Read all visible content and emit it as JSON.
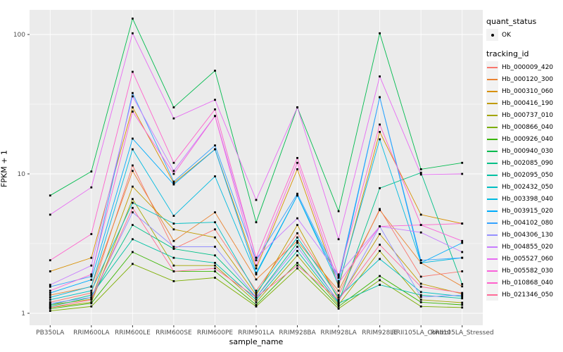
{
  "chart_data": {
    "type": "line",
    "title": "",
    "xlabel": "sample_name",
    "ylabel": "FPKM + 1",
    "y_scale": "log10",
    "y_ticks": [
      1,
      10,
      100
    ],
    "y_minor_ticks": [
      3.162,
      31.62
    ],
    "ylim": [
      0.82,
      150
    ],
    "grid": "on",
    "legend_position": "right",
    "marker": {
      "shape": "square",
      "color": "#000000",
      "meaning": "quant_status OK"
    },
    "categories": [
      "PB350LA",
      "RRIM600LA",
      "RRIM600LE",
      "RRIM600SE",
      "RRIM600PE",
      "RRIM901LA",
      "RRIM928BA",
      "RRIM928LA",
      "RRIM928LE",
      "RRII105LA_Control",
      "RRII105LA_Stressed"
    ],
    "series": [
      {
        "name": "Hb_000009_420",
        "color": "#F8766D",
        "values": [
          1.2,
          1.4,
          11.5,
          2.9,
          4.0,
          1.45,
          3.75,
          1.35,
          5.6,
          1.83,
          2.0
        ]
      },
      {
        "name": "Hb_000120_300",
        "color": "#EA8331",
        "values": [
          1.35,
          1.55,
          10.5,
          3.3,
          5.3,
          1.75,
          3.3,
          1.45,
          5.5,
          2.3,
          1.56
        ]
      },
      {
        "name": "Hb_000310_060",
        "color": "#D89000",
        "values": [
          2.0,
          2.5,
          30,
          8.6,
          15,
          2.1,
          10.8,
          1.55,
          20,
          5.1,
          4.4
        ]
      },
      {
        "name": "Hb_000416_190",
        "color": "#C09B00",
        "values": [
          1.15,
          1.26,
          8.1,
          4.0,
          3.5,
          1.35,
          4.3,
          1.25,
          3.7,
          1.63,
          1.38
        ]
      },
      {
        "name": "Hb_000737_010",
        "color": "#A3A500",
        "values": [
          1.1,
          1.2,
          6.6,
          2.2,
          2.2,
          1.2,
          2.6,
          1.15,
          2.8,
          1.25,
          1.19
        ]
      },
      {
        "name": "Hb_000866_040",
        "color": "#7CAE00",
        "values": [
          1.04,
          1.12,
          2.26,
          1.7,
          1.8,
          1.12,
          2.1,
          1.08,
          1.73,
          1.12,
          1.1
        ]
      },
      {
        "name": "Hb_000926_040",
        "color": "#39B600",
        "values": [
          1.08,
          1.18,
          2.75,
          2.0,
          2.0,
          1.15,
          2.3,
          1.12,
          1.85,
          1.2,
          1.15
        ]
      },
      {
        "name": "Hb_000940_030",
        "color": "#00BB4E",
        "values": [
          7.0,
          10.4,
          130,
          30,
          55,
          4.5,
          30,
          5.4,
          102,
          10.8,
          12
        ]
      },
      {
        "name": "Hb_002085_090",
        "color": "#00C087",
        "values": [
          1.12,
          1.3,
          4.3,
          2.9,
          2.6,
          1.3,
          3.2,
          1.2,
          7.9,
          10.2,
          1.62
        ]
      },
      {
        "name": "Hb_002095_050",
        "color": "#00C1A3",
        "values": [
          1.15,
          1.35,
          3.4,
          2.5,
          2.3,
          1.25,
          2.8,
          1.18,
          1.6,
          1.35,
          1.28
        ]
      },
      {
        "name": "Hb_002432_050",
        "color": "#00BFC4",
        "values": [
          1.25,
          1.45,
          6.2,
          4.4,
          4.5,
          1.4,
          3.5,
          1.3,
          2.45,
          1.42,
          1.32
        ]
      },
      {
        "name": "Hb_003398_040",
        "color": "#00BAE0",
        "values": [
          1.3,
          1.56,
          15,
          5.0,
          9.6,
          1.9,
          7.0,
          1.6,
          17.7,
          2.3,
          2.5
        ]
      },
      {
        "name": "Hb_003915_020",
        "color": "#00ACFC",
        "values": [
          1.4,
          1.74,
          17.9,
          8.4,
          15,
          1.95,
          7.0,
          1.7,
          35.5,
          2.3,
          3.2
        ]
      },
      {
        "name": "Hb_004102_080",
        "color": "#35A2FF",
        "values": [
          1.55,
          1.84,
          38,
          8.8,
          16,
          2.4,
          7.2,
          1.8,
          35.5,
          2.4,
          2.5
        ]
      },
      {
        "name": "Hb_004306_130",
        "color": "#9590FF",
        "values": [
          1.18,
          1.3,
          5.3,
          3.0,
          3.0,
          1.3,
          3.0,
          1.22,
          4.2,
          1.31,
          1.35
        ]
      },
      {
        "name": "Hb_004855_020",
        "color": "#C77CFF",
        "values": [
          1.6,
          2.2,
          36,
          10.5,
          26,
          2.5,
          4.8,
          1.9,
          4.2,
          3.8,
          2.75
        ]
      },
      {
        "name": "Hb_005527_060",
        "color": "#E76BF3",
        "values": [
          5.1,
          8.0,
          102,
          25,
          34,
          6.5,
          30,
          3.4,
          50,
          9.9,
          10
        ]
      },
      {
        "name": "Hb_005582_030",
        "color": "#FA62DB",
        "values": [
          1.45,
          1.9,
          28,
          10,
          26,
          2.2,
          12,
          1.65,
          4.2,
          4.3,
          3.3
        ]
      },
      {
        "name": "Hb_010868_040",
        "color": "#FF61CC",
        "values": [
          2.4,
          3.7,
          54,
          12,
          29,
          2.5,
          13,
          1.85,
          22.6,
          4.3,
          4.4
        ]
      },
      {
        "name": "Hb_021346_050",
        "color": "#FF6A98",
        "values": [
          1.1,
          1.25,
          5.7,
          2.0,
          2.1,
          1.3,
          2.2,
          1.25,
          3.1,
          1.55,
          1.4
        ]
      }
    ]
  },
  "legend": {
    "quant_status_title": "quant_status",
    "quant_status_items": [
      "OK"
    ],
    "tracking_id_title": "tracking_id"
  },
  "colors": {
    "panel_bg": "#EBEBEB",
    "grid": "#FFFFFF",
    "tick_label": "#4D4D4D",
    "tick_mark": "#333333",
    "legend_key_bg": "#F2F2F2"
  }
}
